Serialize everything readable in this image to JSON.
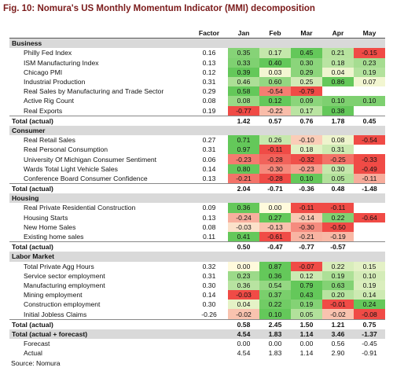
{
  "title": "Fig. 10: Nomura's US Monthly Momentum Indicator (MMI) decomposition",
  "table": {
    "header": [
      null,
      "Factor",
      "Jan",
      "Feb",
      "Mar",
      "Apr",
      "May"
    ],
    "sections": [
      {
        "name": "Business",
        "rows": [
          {
            "label": "Philly Fed Index",
            "cells": [
              "0.16",
              "0.35",
              "0.17",
              "0.45",
              "0.21",
              "-0.15"
            ]
          },
          {
            "label": "ISM Manufacturing Index",
            "cells": [
              "0.13",
              "0.33",
              "0.40",
              "0.30",
              "0.18",
              "0.23"
            ]
          },
          {
            "label": "Chicago PMI",
            "cells": [
              "0.12",
              "0.39",
              "0.03",
              "0.29",
              "0.04",
              "0.19"
            ]
          },
          {
            "label": "Industrial Production",
            "cells": [
              "0.31",
              "0.46",
              "0.60",
              "0.25",
              "0.86",
              "0.07"
            ]
          },
          {
            "label": "Real Sales by Manufacturing and Trade Sector",
            "cells": [
              "0.29",
              "0.58",
              "-0.54",
              "-0.79",
              null,
              null
            ]
          },
          {
            "label": "Active Rig Count",
            "cells": [
              "0.08",
              "0.08",
              "0.12",
              "0.09",
              "0.10",
              "0.10"
            ]
          },
          {
            "label": "Real Exports",
            "cells": [
              "0.19",
              "-0.77",
              "-0.22",
              "0.17",
              "0.38",
              null
            ]
          }
        ],
        "total": {
          "label": "Total (actual)",
          "cells": [
            null,
            "1.42",
            "0.57",
            "0.76",
            "1.78",
            "0.45"
          ]
        }
      },
      {
        "name": "Consumer",
        "rows": [
          {
            "label": "Real Retail Sales",
            "cells": [
              "0.27",
              "0.71",
              "0.26",
              "-0.10",
              "0.08",
              "-0.54"
            ]
          },
          {
            "label": "Real Personal Consumption",
            "cells": [
              "0.31",
              "0.97",
              "-0.11",
              "0.18",
              "0.31",
              null
            ]
          },
          {
            "label": "University Of Michigan Consumer Sentiment",
            "cells": [
              "0.06",
              "-0.23",
              "-0.28",
              "-0.32",
              "-0.25",
              "-0.33"
            ]
          },
          {
            "label": "Wards Total Light Vehicle Sales",
            "cells": [
              "0.14",
              "0.80",
              "-0.30",
              "-0.23",
              "0.30",
              "-0.49"
            ]
          },
          {
            "label": "Conference Board Consumer Confidence",
            "cells": [
              "0.13",
              "-0.21",
              "-0.28",
              "0.10",
              "0.05",
              "-0.11"
            ]
          }
        ],
        "total": {
          "label": "Total (actual)",
          "cells": [
            null,
            "2.04",
            "-0.71",
            "-0.36",
            "0.48",
            "-1.48"
          ]
        }
      },
      {
        "name": "Housing",
        "rows": [
          {
            "label": "Real Private Residential Construction",
            "cells": [
              "0.09",
              "0.36",
              "0.00",
              "-0.11",
              "-0.11",
              null
            ]
          },
          {
            "label": "Housing Starts",
            "cells": [
              "0.13",
              "-0.24",
              "0.27",
              "-0.14",
              "0.22",
              "-0.64"
            ]
          },
          {
            "label": "New Home Sales",
            "cells": [
              "0.08",
              "-0.03",
              "-0.13",
              "-0.30",
              "-0.50",
              null
            ]
          },
          {
            "label": "Existing home sales",
            "cells": [
              "0.11",
              "0.41",
              "-0.61",
              "-0.21",
              "-0.19",
              null
            ]
          }
        ],
        "total": {
          "label": "Total (actual)",
          "cells": [
            null,
            "0.50",
            "-0.47",
            "-0.77",
            "-0.57",
            null
          ]
        }
      },
      {
        "name": "Labor Market",
        "rows": [
          {
            "label": "Total Private Agg Hours",
            "cells": [
              "0.32",
              "0.00",
              "0.87",
              "-0.07",
              "0.22",
              "0.15"
            ]
          },
          {
            "label": "Service sector employment",
            "cells": [
              "0.31",
              "0.23",
              "0.36",
              "0.12",
              "0.19",
              "0.10"
            ]
          },
          {
            "label": "Manufacturing employment",
            "cells": [
              "0.30",
              "0.36",
              "0.54",
              "0.79",
              "0.63",
              "0.19"
            ]
          },
          {
            "label": "Mining employment",
            "cells": [
              "0.14",
              "-0.03",
              "0.37",
              "0.43",
              "0.20",
              "0.14"
            ]
          },
          {
            "label": "Construction employment",
            "cells": [
              "0.30",
              "0.04",
              "0.22",
              "0.19",
              "-0.01",
              "0.24"
            ]
          },
          {
            "label": "Initial Jobless Claims",
            "cells": [
              "-0.26",
              "-0.02",
              "0.10",
              "0.05",
              "-0.02",
              "-0.08"
            ]
          }
        ],
        "total": {
          "label": "Total (actual)",
          "cells": [
            null,
            "0.58",
            "2.45",
            "1.50",
            "1.21",
            "0.75"
          ]
        }
      }
    ],
    "summary": [
      {
        "label": "Total (actual + forecast)",
        "cells": [
          null,
          "4.54",
          "1.83",
          "1.14",
          "3.46",
          "-1.37"
        ]
      },
      {
        "label": "Forecast",
        "cells": [
          null,
          "0.00",
          "0.00",
          "0.00",
          "0.56",
          "-0.45"
        ]
      },
      {
        "label": "Actual",
        "cells": [
          null,
          "4.54",
          "1.83",
          "1.14",
          "2.90",
          "-0.91"
        ]
      }
    ]
  },
  "source": "Source: Nomura"
}
